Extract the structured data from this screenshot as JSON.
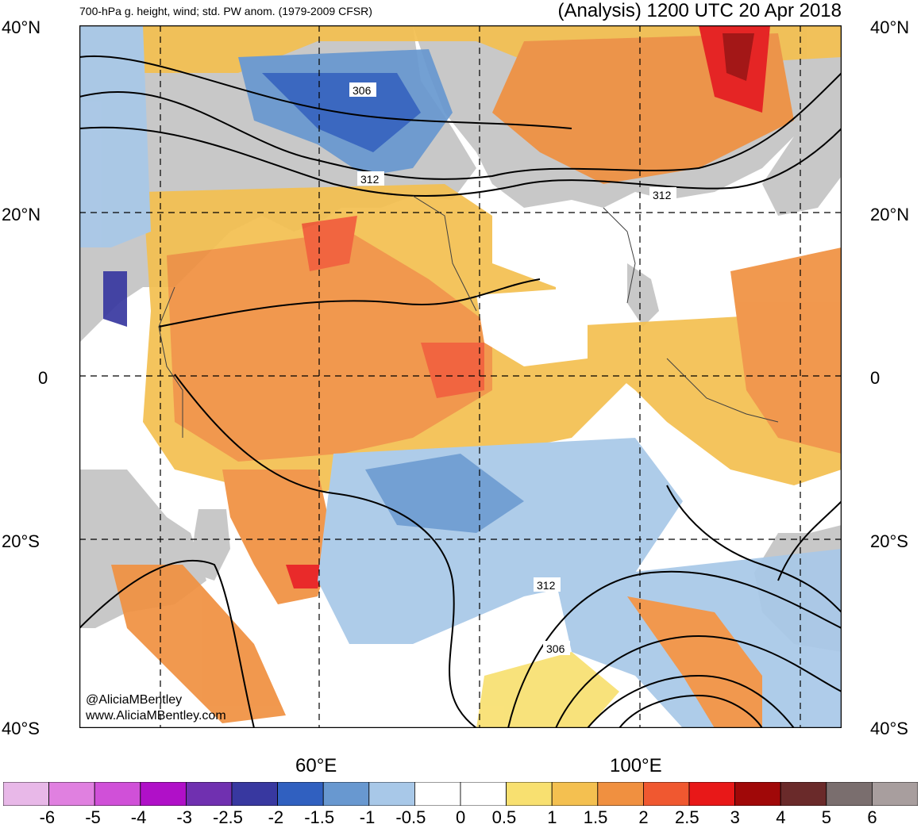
{
  "header": {
    "left_title": "700-hPa g. height, wind; std. PW anom. (1979-2009 CFSR)",
    "right_title": "(Analysis) 1200 UTC 20 Apr 2018"
  },
  "axes": {
    "lat_labels": [
      "40°N",
      "20°N",
      "0",
      "20°S",
      "40°S"
    ],
    "lon_labels": [
      "60°E",
      "100°E"
    ]
  },
  "contour_labels": [
    "306",
    "312",
    "312",
    "312",
    "306"
  ],
  "credits": {
    "handle": "@AliciaMBentley",
    "url": "www.AliciaMBentley.com"
  },
  "colorbar": {
    "labels": [
      "-6",
      "-5",
      "-4",
      "-3",
      "-2.5",
      "-2",
      "-1.5",
      "-1",
      "-0.5",
      "0",
      "0.5",
      "1",
      "1.5",
      "2",
      "2.5",
      "3",
      "4",
      "5",
      "6"
    ],
    "colors": [
      "#e8b8e8",
      "#e080e0",
      "#d050d8",
      "#b010c8",
      "#7030b0",
      "#3838a0",
      "#3060c0",
      "#6898d0",
      "#a8c8e8",
      "#ffffff",
      "#ffffff",
      "#f8e070",
      "#f4c050",
      "#f09040",
      "#f05830",
      "#e81818",
      "#a00808",
      "#6a2a2a",
      "#7a6e6e",
      "#a89e9e"
    ]
  }
}
